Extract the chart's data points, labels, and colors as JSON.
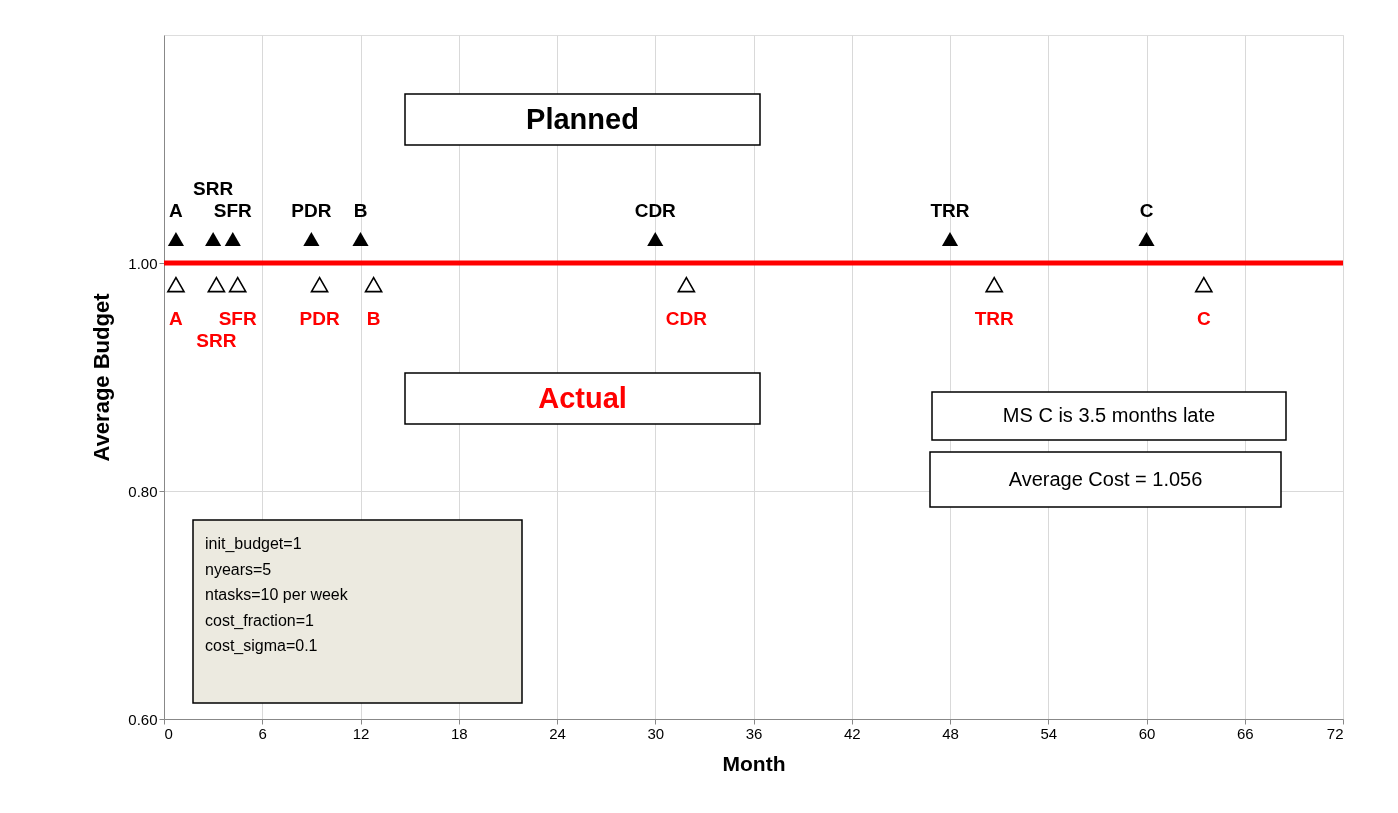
{
  "chart_data": {
    "type": "scatter",
    "xlabel": "Month",
    "ylabel": "Average Budget",
    "xlim": [
      0,
      72
    ],
    "xticks": [
      0,
      6,
      12,
      18,
      24,
      30,
      36,
      42,
      48,
      54,
      60,
      66,
      72
    ],
    "ylim": [
      0.6,
      1.2
    ],
    "yticks": [
      {
        "value": 0.6,
        "label": "0.60"
      },
      {
        "value": 0.8,
        "label": "0.80"
      },
      {
        "value": 1.0,
        "label": "1.00"
      }
    ],
    "grid": true,
    "marker": "triangle",
    "series": [
      {
        "color": "#000000",
        "x": [
          0.73,
          3.0,
          4.2,
          9.0,
          12.0,
          30.0,
          48.0,
          60.0
        ],
        "values": [
          1.021,
          1.021,
          1.021,
          1.021,
          1.021,
          1.021,
          1.021,
          1.021
        ],
        "value_labels": [
          "A",
          "SRR",
          "SFR",
          "PDR",
          "B",
          "CDR",
          "TRR",
          "C"
        ]
      },
      {
        "color": "#000000",
        "x": [
          0.73,
          3.2,
          4.5,
          9.5,
          12.8,
          31.9,
          50.7,
          63.5
        ],
        "values": [
          0.981,
          0.981,
          0.981,
          0.981,
          0.981,
          0.981,
          0.981,
          0.981
        ],
        "value_labels": [
          "A",
          "SRR",
          "SFR",
          "PDR",
          "B",
          "CDR",
          "TRR",
          "C"
        ]
      },
      {
        "type": "line",
        "marker": "none",
        "color": "#ff0000",
        "x": [
          0,
          72
        ],
        "values": [
          1.0,
          1.0
        ]
      }
    ],
    "annotations": [
      "Planned",
      "Actual",
      "MS C is 3.5 months late",
      "Average Cost = 1.056",
      "init_budget=1\nnyears=5\nntasks=10 per week\ncost_fraction=1\ncost_sigma=0.1"
    ]
  }
}
